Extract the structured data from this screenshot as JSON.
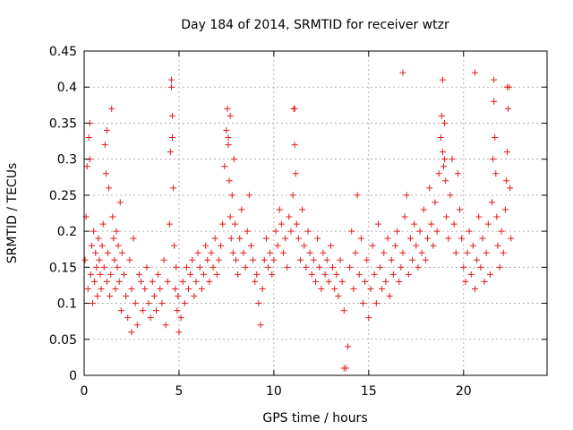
{
  "chart_data": {
    "type": "scatter",
    "title": "Day 184 of 2014, SRMTID for receiver wtzr",
    "xlabel": "GPS time / hours",
    "ylabel": "SRMTID / TECUs",
    "xlim": [
      0,
      24.4
    ],
    "ylim": [
      0,
      0.45
    ],
    "x_ticks": [
      0,
      5,
      10,
      15,
      20
    ],
    "y_ticks": [
      0,
      0.05,
      0.1,
      0.15,
      0.2,
      0.25,
      0.3,
      0.35,
      0.4,
      0.45
    ],
    "x_tick_labels": [
      "0",
      "5",
      "10",
      "15",
      "20"
    ],
    "y_tick_labels": [
      "0",
      "0.05",
      "0.1",
      "0.15",
      "0.2",
      "0.25",
      "0.3",
      "0.35",
      "0.4",
      "0.45"
    ],
    "grid": true,
    "marker": "plus",
    "series": [
      {
        "name": "SRMTID",
        "color": "#e41a1c",
        "x": [
          0.05,
          0.1,
          0.15,
          0.2,
          0.25,
          0.3,
          0.35,
          0.4,
          0.45,
          0.5,
          0.55,
          0.6,
          0.65,
          0.7,
          0.75,
          0.8,
          0.85,
          0.9,
          0.95,
          1.0,
          1.05,
          1.1,
          1.15,
          1.2,
          1.25,
          1.3,
          1.35,
          1.4,
          1.45,
          1.5,
          1.55,
          1.6,
          1.65,
          1.7,
          1.75,
          1.8,
          1.85,
          1.9,
          1.95,
          2.0,
          2.1,
          2.2,
          2.3,
          2.4,
          2.5,
          2.6,
          2.7,
          2.8,
          2.9,
          3.0,
          3.1,
          3.2,
          3.3,
          3.4,
          3.5,
          3.6,
          3.7,
          3.8,
          3.9,
          4.0,
          4.1,
          4.2,
          4.3,
          4.4,
          4.5,
          4.55,
          4.6,
          4.65,
          4.7,
          4.75,
          4.8,
          4.85,
          4.9,
          4.95,
          5.0,
          5.1,
          5.2,
          5.3,
          5.4,
          5.5,
          5.6,
          5.7,
          5.8,
          5.9,
          6.0,
          6.1,
          6.2,
          6.3,
          6.4,
          6.5,
          6.6,
          6.7,
          6.8,
          6.9,
          7.0,
          7.1,
          7.2,
          7.3,
          7.4,
          7.5,
          7.55,
          7.6,
          7.65,
          7.7,
          7.75,
          7.8,
          7.85,
          7.9,
          7.95,
          8.0,
          8.1,
          8.2,
          8.3,
          8.4,
          8.5,
          8.6,
          8.7,
          8.8,
          8.9,
          9.0,
          9.1,
          9.2,
          9.3,
          9.4,
          9.5,
          9.6,
          9.7,
          9.8,
          9.9,
          10.0,
          10.1,
          10.2,
          10.3,
          10.4,
          10.5,
          10.6,
          10.7,
          10.8,
          10.9,
          11.0,
          11.05,
          11.1,
          11.15,
          11.2,
          11.3,
          11.4,
          11.5,
          11.6,
          11.7,
          11.8,
          11.9,
          12.0,
          12.1,
          12.2,
          12.3,
          12.4,
          12.5,
          12.6,
          12.7,
          12.8,
          12.9,
          13.0,
          13.1,
          13.2,
          13.3,
          13.4,
          13.5,
          13.6,
          13.7,
          13.8,
          13.9,
          14.0,
          14.1,
          14.2,
          14.3,
          14.4,
          14.5,
          14.6,
          14.7,
          14.8,
          14.9,
          15.0,
          15.1,
          15.2,
          15.3,
          15.4,
          15.5,
          15.6,
          15.7,
          15.8,
          15.9,
          16.0,
          16.1,
          16.2,
          16.3,
          16.4,
          16.5,
          16.6,
          16.7,
          16.8,
          16.9,
          17.0,
          17.1,
          17.2,
          17.3,
          17.4,
          17.5,
          17.6,
          17.7,
          17.8,
          17.9,
          18.0,
          18.1,
          18.2,
          18.3,
          18.4,
          18.5,
          18.6,
          18.7,
          18.8,
          18.85,
          18.9,
          18.95,
          19.0,
          19.05,
          19.1,
          19.2,
          19.3,
          19.4,
          19.5,
          19.6,
          19.7,
          19.8,
          19.9,
          20.0,
          20.1,
          20.2,
          20.3,
          20.4,
          20.5,
          20.6,
          20.7,
          20.8,
          20.9,
          21.0,
          21.1,
          21.2,
          21.3,
          21.4,
          21.5,
          21.55,
          21.6,
          21.65,
          21.7,
          21.75,
          21.8,
          21.9,
          22.0,
          22.1,
          22.2,
          22.25,
          22.3,
          22.35,
          22.4,
          22.45,
          22.5,
          0.3,
          1.2,
          2.5,
          4.6,
          7.7,
          11.1,
          13.7,
          16.8,
          18.9,
          20.6,
          21.6,
          22.3,
          4.65,
          7.6,
          19.0
        ],
        "y": [
          0.16,
          0.22,
          0.29,
          0.12,
          0.33,
          0.35,
          0.14,
          0.18,
          0.1,
          0.2,
          0.13,
          0.17,
          0.15,
          0.11,
          0.19,
          0.16,
          0.14,
          0.12,
          0.18,
          0.21,
          0.15,
          0.32,
          0.28,
          0.13,
          0.17,
          0.26,
          0.11,
          0.14,
          0.37,
          0.22,
          0.19,
          0.16,
          0.12,
          0.2,
          0.15,
          0.18,
          0.13,
          0.24,
          0.09,
          0.17,
          0.14,
          0.11,
          0.08,
          0.16,
          0.12,
          0.19,
          0.1,
          0.07,
          0.14,
          0.13,
          0.09,
          0.12,
          0.15,
          0.1,
          0.08,
          0.13,
          0.11,
          0.09,
          0.14,
          0.12,
          0.1,
          0.16,
          0.07,
          0.13,
          0.21,
          0.31,
          0.41,
          0.33,
          0.26,
          0.18,
          0.12,
          0.15,
          0.09,
          0.11,
          0.06,
          0.08,
          0.13,
          0.1,
          0.15,
          0.12,
          0.14,
          0.16,
          0.11,
          0.13,
          0.17,
          0.15,
          0.12,
          0.14,
          0.18,
          0.16,
          0.13,
          0.17,
          0.15,
          0.19,
          0.14,
          0.16,
          0.18,
          0.21,
          0.29,
          0.34,
          0.37,
          0.32,
          0.27,
          0.22,
          0.19,
          0.25,
          0.17,
          0.3,
          0.21,
          0.16,
          0.14,
          0.19,
          0.23,
          0.17,
          0.15,
          0.2,
          0.25,
          0.18,
          0.16,
          0.13,
          0.14,
          0.1,
          0.07,
          0.12,
          0.16,
          0.19,
          0.15,
          0.17,
          0.14,
          0.16,
          0.2,
          0.18,
          0.23,
          0.21,
          0.17,
          0.19,
          0.15,
          0.22,
          0.2,
          0.25,
          0.37,
          0.32,
          0.28,
          0.21,
          0.19,
          0.16,
          0.23,
          0.18,
          0.15,
          0.2,
          0.17,
          0.14,
          0.16,
          0.13,
          0.19,
          0.15,
          0.12,
          0.17,
          0.14,
          0.16,
          0.13,
          0.18,
          0.15,
          0.12,
          0.14,
          0.11,
          0.16,
          0.13,
          0.09,
          0.01,
          0.04,
          0.15,
          0.2,
          0.12,
          0.17,
          0.25,
          0.14,
          0.19,
          0.1,
          0.13,
          0.16,
          0.08,
          0.12,
          0.18,
          0.14,
          0.1,
          0.21,
          0.15,
          0.12,
          0.17,
          0.13,
          0.19,
          0.11,
          0.16,
          0.14,
          0.18,
          0.2,
          0.13,
          0.15,
          0.17,
          0.22,
          0.25,
          0.14,
          0.19,
          0.16,
          0.21,
          0.18,
          0.15,
          0.2,
          0.17,
          0.23,
          0.16,
          0.19,
          0.26,
          0.21,
          0.18,
          0.24,
          0.2,
          0.28,
          0.33,
          0.36,
          0.31,
          0.29,
          0.35,
          0.27,
          0.22,
          0.19,
          0.25,
          0.3,
          0.21,
          0.17,
          0.28,
          0.23,
          0.19,
          0.15,
          0.13,
          0.17,
          0.2,
          0.14,
          0.18,
          0.12,
          0.16,
          0.22,
          0.15,
          0.19,
          0.13,
          0.17,
          0.21,
          0.14,
          0.24,
          0.3,
          0.38,
          0.33,
          0.28,
          0.22,
          0.18,
          0.15,
          0.2,
          0.17,
          0.23,
          0.27,
          0.31,
          0.37,
          0.4,
          0.26,
          0.19,
          0.3,
          0.34,
          0.06,
          0.4,
          0.36,
          0.37,
          0.01,
          0.42,
          0.41,
          0.42,
          0.41,
          0.4,
          0.36,
          0.33,
          0.3
        ]
      }
    ]
  }
}
